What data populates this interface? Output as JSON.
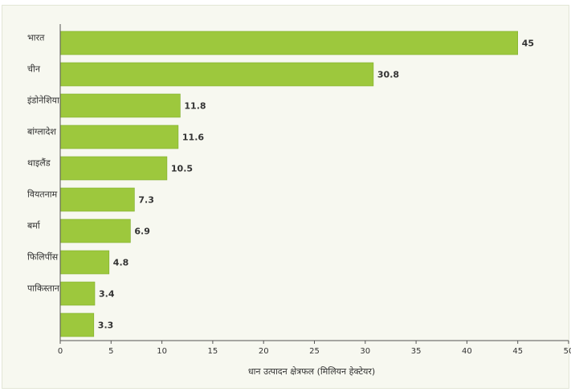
{
  "chart_data": {
    "type": "bar",
    "orientation": "horizontal",
    "categories": [
      "भारत",
      "चीन",
      "इंडोनेशिया",
      "बांग्लादेश",
      "थाइलैंड",
      "वियतनाम",
      "बर्मा",
      "फिलिपींस",
      "पाकिस्तान",
      ""
    ],
    "values": [
      45,
      30.8,
      11.8,
      11.6,
      10.5,
      7.3,
      6.9,
      4.8,
      3.4,
      3.3
    ],
    "value_labels": [
      "45",
      "30.8",
      "11.8",
      "11.6",
      "10.5",
      "7.3",
      "6.9",
      "4.8",
      "3.4",
      "3.3"
    ],
    "xlabel": "धान उत्पादन क्षेत्रफल (मिलियन हेक्टेयर)",
    "ylabel": "",
    "xlim": [
      0,
      50
    ],
    "xticks": [
      "0",
      "5",
      "10",
      "15",
      "20",
      "25",
      "30",
      "35",
      "40",
      "45",
      "50"
    ],
    "grid": false,
    "bar_color": "#9dc83d",
    "bar_edge_color": "#7fae2b"
  }
}
